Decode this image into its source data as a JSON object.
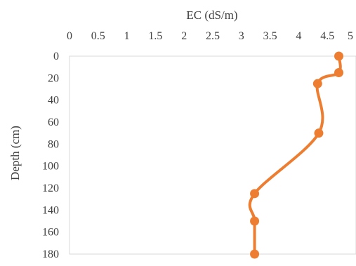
{
  "chart_data": {
    "type": "line",
    "xlabel": "EC (dS/m)",
    "ylabel": "Depth (cm)",
    "xlim": [
      0,
      5
    ],
    "ylim": [
      0,
      180
    ],
    "y_inverted": true,
    "x_axis_position": "top",
    "x_ticks": [
      0,
      0.5,
      1,
      1.5,
      2,
      2.5,
      3,
      3.5,
      4,
      4.5,
      5
    ],
    "x_tick_labels": [
      "0",
      "0.5",
      "1",
      "1.5",
      "2",
      "2.5",
      "3",
      "3.5",
      "4",
      "4.5",
      "5"
    ],
    "y_ticks": [
      0,
      20,
      40,
      60,
      80,
      100,
      120,
      140,
      160,
      180
    ],
    "y_tick_labels": [
      "0",
      "20",
      "40",
      "60",
      "80",
      "100",
      "120",
      "140",
      "160",
      "180"
    ],
    "grid": false,
    "series": [
      {
        "x": [
          4.7,
          4.7,
          4.33,
          4.35,
          3.23,
          3.23,
          3.23
        ],
        "y": [
          0,
          15,
          25,
          70,
          125,
          150,
          180
        ],
        "color": "#ED7D31",
        "smooth": true,
        "markers": true
      }
    ]
  }
}
